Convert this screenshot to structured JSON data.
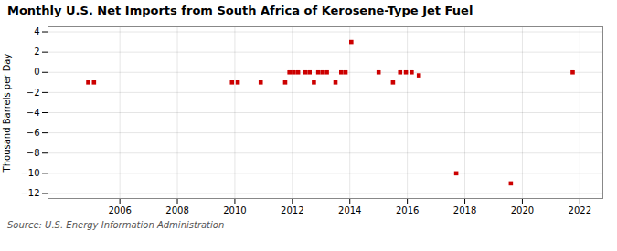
{
  "chart_data": {
    "type": "scatter",
    "title": "Monthly U.S. Net Imports from South Africa of Kerosene-Type Jet Fuel",
    "ylabel": "Thousand Barrels per Day",
    "caption": "Source: U.S. Energy Information Administration",
    "x": [
      2004.9,
      2005.1,
      2009.9,
      2010.1,
      2010.9,
      2011.75,
      2011.9,
      2012.05,
      2012.2,
      2012.45,
      2012.6,
      2012.75,
      2012.9,
      2013.05,
      2013.2,
      2013.5,
      2013.7,
      2013.85,
      2014.05,
      2015.0,
      2015.5,
      2015.75,
      2015.95,
      2016.15,
      2016.4,
      2017.7,
      2019.6,
      2021.75
    ],
    "values": [
      -1.0,
      -1.0,
      -1.0,
      -1.0,
      -1.0,
      -1.0,
      0.0,
      0.0,
      0.0,
      0.0,
      0.0,
      -1.0,
      0.0,
      0.0,
      0.0,
      -1.0,
      0.0,
      0.0,
      3.0,
      0.0,
      -1.0,
      0.0,
      0.0,
      0.0,
      -0.3,
      -10.0,
      -11.0,
      0.0
    ],
    "color": "#cc0000",
    "marker": "square",
    "xlim": [
      2003.5,
      2022.8
    ],
    "ylim": [
      -12.5,
      4.5
    ],
    "xticks": [
      2006,
      2008,
      2010,
      2012,
      2014,
      2016,
      2018,
      2020,
      2022
    ],
    "yticks": [
      4,
      2,
      0,
      -2,
      -4,
      -6,
      -8,
      -10,
      -12
    ],
    "grid": true
  }
}
